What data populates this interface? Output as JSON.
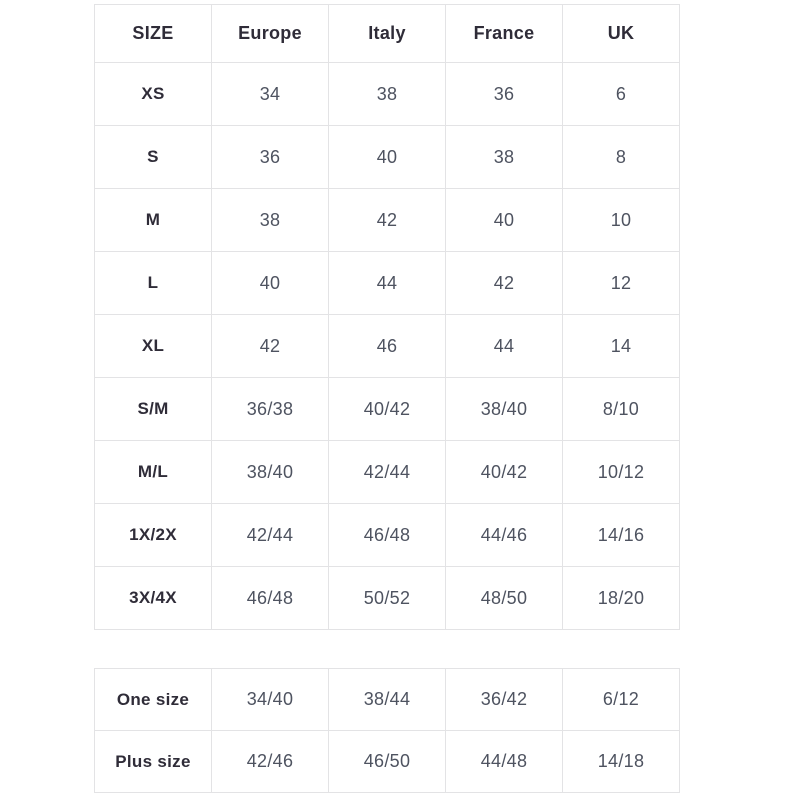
{
  "colors": {
    "background": "#ffffff",
    "border": "#e3e3e5",
    "header_text": "#2f2c38",
    "cell_text": "#4e5360"
  },
  "size_table": {
    "headers": [
      "SIZE",
      "Europe",
      "Italy",
      "France",
      "UK"
    ],
    "rows": [
      {
        "label": "XS",
        "values": [
          "34",
          "38",
          "36",
          "6"
        ]
      },
      {
        "label": "S",
        "values": [
          "36",
          "40",
          "38",
          "8"
        ]
      },
      {
        "label": "M",
        "values": [
          "38",
          "42",
          "40",
          "10"
        ]
      },
      {
        "label": "L",
        "values": [
          "40",
          "44",
          "42",
          "12"
        ]
      },
      {
        "label": "XL",
        "values": [
          "42",
          "46",
          "44",
          "14"
        ]
      },
      {
        "label": "S/M",
        "values": [
          "36/38",
          "40/42",
          "38/40",
          "8/10"
        ]
      },
      {
        "label": "M/L",
        "values": [
          "38/40",
          "42/44",
          "40/42",
          "10/12"
        ]
      },
      {
        "label": "1X/2X",
        "values": [
          "42/44",
          "46/48",
          "44/46",
          "14/16"
        ]
      },
      {
        "label": "3X/4X",
        "values": [
          "46/48",
          "50/52",
          "48/50",
          "18/20"
        ]
      }
    ]
  },
  "special_table": {
    "rows": [
      {
        "label": "One size",
        "values": [
          "34/40",
          "38/44",
          "36/42",
          "6/12"
        ]
      },
      {
        "label": "Plus size",
        "values": [
          "42/46",
          "46/50",
          "44/48",
          "14/18"
        ]
      }
    ]
  }
}
